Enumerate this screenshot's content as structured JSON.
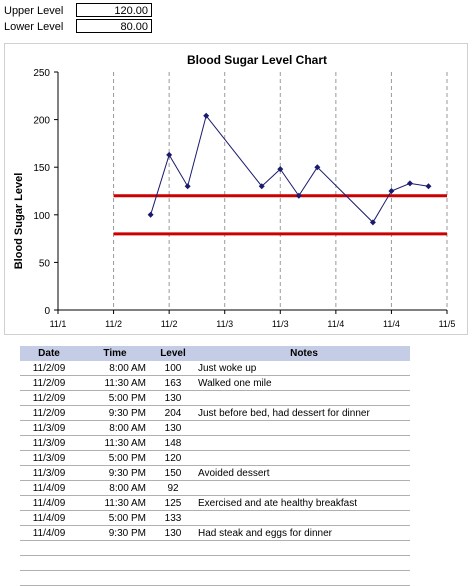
{
  "controls": {
    "upper_label": "Upper Level",
    "upper_value": "120.00",
    "lower_label": "Lower Level",
    "lower_value": "80.00"
  },
  "chart_data": {
    "type": "line",
    "title": "Blood Sugar Level Chart",
    "ylabel": "Blood Sugar Level",
    "xlabel": "",
    "x_tick_labels": [
      "11/1",
      "11/2",
      "11/2",
      "11/3",
      "11/3",
      "11/4",
      "11/4",
      "11/5"
    ],
    "y_ticks": [
      0,
      50,
      100,
      150,
      200,
      250
    ],
    "ylim": [
      0,
      250
    ],
    "grid": "vertical dashed",
    "series": [
      {
        "values": [
          100,
          163,
          130,
          204,
          130,
          148,
          120,
          150,
          92,
          125,
          133,
          130
        ],
        "color": "#1a1a6e"
      }
    ],
    "upper_level": 120,
    "lower_level": 80,
    "threshold_color": "#cc0000"
  },
  "table": {
    "headers": [
      "Date",
      "Time",
      "Level",
      "Notes"
    ],
    "rows": [
      [
        "11/2/09",
        "8:00 AM",
        "100",
        "Just woke up"
      ],
      [
        "11/2/09",
        "11:30 AM",
        "163",
        "Walked one mile"
      ],
      [
        "11/2/09",
        "5:00 PM",
        "130",
        ""
      ],
      [
        "11/2/09",
        "9:30 PM",
        "204",
        "Just before bed, had dessert for dinner"
      ],
      [
        "11/3/09",
        "8:00 AM",
        "130",
        ""
      ],
      [
        "11/3/09",
        "11:30 AM",
        "148",
        ""
      ],
      [
        "11/3/09",
        "5:00 PM",
        "120",
        ""
      ],
      [
        "11/3/09",
        "9:30 PM",
        "150",
        "Avoided dessert"
      ],
      [
        "11/4/09",
        "8:00 AM",
        "92",
        ""
      ],
      [
        "11/4/09",
        "11:30 AM",
        "125",
        "Exercised and ate healthy breakfast"
      ],
      [
        "11/4/09",
        "5:00 PM",
        "133",
        ""
      ],
      [
        "11/4/09",
        "9:30 PM",
        "130",
        "Had steak and eggs for dinner"
      ],
      [
        "",
        "",
        "",
        ""
      ],
      [
        "",
        "",
        "",
        ""
      ],
      [
        "",
        "",
        "",
        ""
      ]
    ]
  }
}
